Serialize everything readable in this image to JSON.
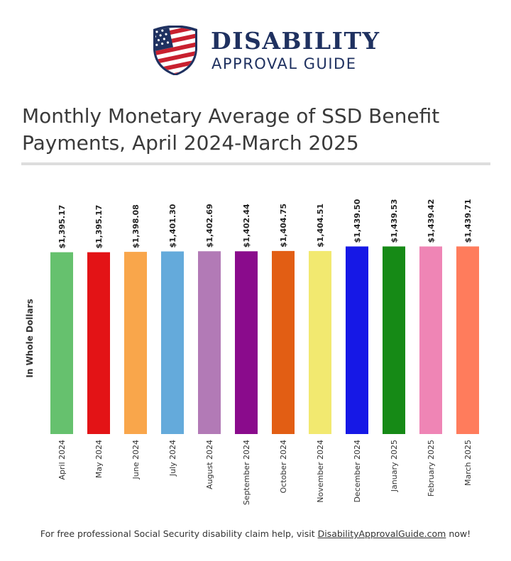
{
  "logo": {
    "line1": "DISABILITY",
    "line2": "APPROVAL GUIDE",
    "icon": "us-flag-shield-icon",
    "colors": {
      "navy": "#1f3160",
      "red": "#c8202f"
    }
  },
  "footer": {
    "prefix": "For free professional Social Security disability claim help, visit ",
    "link_text": "DisabilityApprovalGuide.com",
    "suffix": " now!"
  },
  "chart_data": {
    "type": "bar",
    "title": "Monthly Monetary Average of SSD Benefit Payments, April 2024-March 2025",
    "xlabel": "",
    "ylabel": "In Whole Dollars",
    "ylim": [
      0,
      1600
    ],
    "grid": false,
    "categories": [
      "April 2024",
      "May 2024",
      "June 2024",
      "July 2024",
      "August 2024",
      "September 2024",
      "October 2024",
      "November 2024",
      "December 2024",
      "January 2025",
      "February 2025",
      "March 2025"
    ],
    "values": [
      1395.17,
      1395.17,
      1398.08,
      1401.3,
      1402.69,
      1402.44,
      1404.75,
      1404.51,
      1439.5,
      1439.53,
      1439.42,
      1439.71
    ],
    "value_labels": [
      "$1,395.17",
      "$1,395.17",
      "$1,398.08",
      "$1,401.30",
      "$1,402.69",
      "$1,402.44",
      "$1,404.75",
      "$1,404.51",
      "$1,439.50",
      "$1,439.53",
      "$1,439.42",
      "$1,439.71"
    ],
    "colors": [
      "#66c16e",
      "#e31316",
      "#f9a64b",
      "#64aadb",
      "#b27ab6",
      "#8a0b8c",
      "#e25e14",
      "#f2e970",
      "#1618e6",
      "#168a16",
      "#ef85b5",
      "#ff7c5c"
    ]
  }
}
